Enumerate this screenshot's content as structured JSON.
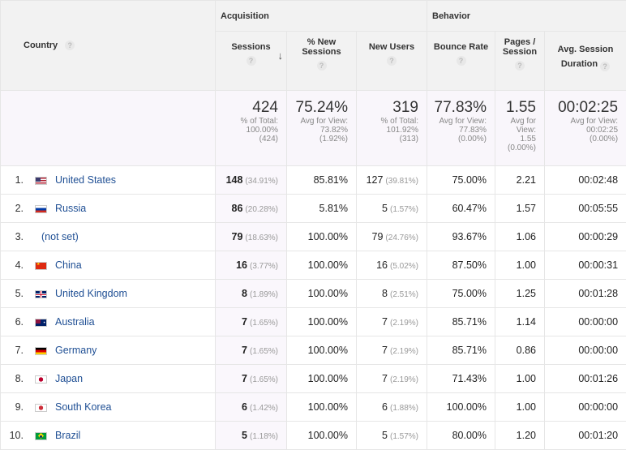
{
  "header": {
    "country": "Country",
    "acquisition": "Acquisition",
    "behavior": "Behavior",
    "cols": {
      "sessions": "Sessions",
      "pct_new_l1": "% New",
      "pct_new_l2": "Sessions",
      "new_users": "New Users",
      "bounce": "Bounce Rate",
      "pages_l1": "Pages /",
      "pages_l2": "Session",
      "dur_l1": "Avg. Session",
      "dur_l2": "Duration"
    },
    "help": "?",
    "sort_arrow": "↓"
  },
  "totals": {
    "sessions": {
      "big": "424",
      "l1": "% of Total:",
      "l2": "100.00%",
      "l3": "(424)"
    },
    "pct_new": {
      "big": "75.24%",
      "l1": "Avg for View:",
      "l2": "73.82%",
      "l3": "(1.92%)"
    },
    "new_users": {
      "big": "319",
      "l1": "% of Total:",
      "l2": "101.92%",
      "l3": "(313)"
    },
    "bounce": {
      "big": "77.83%",
      "l1": "Avg for View:",
      "l2": "77.83%",
      "l3": "(0.00%)"
    },
    "pages": {
      "big": "1.55",
      "l1": "Avg for",
      "l2": "View:",
      "l3": "1.55",
      "l4": "(0.00%)"
    },
    "dur": {
      "big": "00:02:25",
      "l1": "Avg for View:",
      "l2": "00:02:25",
      "l3": "(0.00%)"
    }
  },
  "rows": [
    {
      "idx": "1.",
      "country": "United States",
      "flag": "us-flag-icon",
      "sessions": "148",
      "s_pct": "(34.91%)",
      "pct_new": "85.81%",
      "new_users": "127",
      "nu_pct": "(39.81%)",
      "bounce": "75.00%",
      "pages": "2.21",
      "dur": "00:02:48"
    },
    {
      "idx": "2.",
      "country": "Russia",
      "flag": "ru-flag-icon",
      "sessions": "86",
      "s_pct": "(20.28%)",
      "pct_new": "5.81%",
      "new_users": "5",
      "nu_pct": "(1.57%)",
      "bounce": "60.47%",
      "pages": "1.57",
      "dur": "00:05:55"
    },
    {
      "idx": "3.",
      "country": "(not set)",
      "flag": "",
      "sessions": "79",
      "s_pct": "(18.63%)",
      "pct_new": "100.00%",
      "new_users": "79",
      "nu_pct": "(24.76%)",
      "bounce": "93.67%",
      "pages": "1.06",
      "dur": "00:00:29"
    },
    {
      "idx": "4.",
      "country": "China",
      "flag": "cn-flag-icon",
      "sessions": "16",
      "s_pct": "(3.77%)",
      "pct_new": "100.00%",
      "new_users": "16",
      "nu_pct": "(5.02%)",
      "bounce": "87.50%",
      "pages": "1.00",
      "dur": "00:00:31"
    },
    {
      "idx": "5.",
      "country": "United Kingdom",
      "flag": "gb-flag-icon",
      "sessions": "8",
      "s_pct": "(1.89%)",
      "pct_new": "100.00%",
      "new_users": "8",
      "nu_pct": "(2.51%)",
      "bounce": "75.00%",
      "pages": "1.25",
      "dur": "00:01:28"
    },
    {
      "idx": "6.",
      "country": "Australia",
      "flag": "au-flag-icon",
      "sessions": "7",
      "s_pct": "(1.65%)",
      "pct_new": "100.00%",
      "new_users": "7",
      "nu_pct": "(2.19%)",
      "bounce": "85.71%",
      "pages": "1.14",
      "dur": "00:00:00"
    },
    {
      "idx": "7.",
      "country": "Germany",
      "flag": "de-flag-icon",
      "sessions": "7",
      "s_pct": "(1.65%)",
      "pct_new": "100.00%",
      "new_users": "7",
      "nu_pct": "(2.19%)",
      "bounce": "85.71%",
      "pages": "0.86",
      "dur": "00:00:00"
    },
    {
      "idx": "8.",
      "country": "Japan",
      "flag": "jp-flag-icon",
      "sessions": "7",
      "s_pct": "(1.65%)",
      "pct_new": "100.00%",
      "new_users": "7",
      "nu_pct": "(2.19%)",
      "bounce": "71.43%",
      "pages": "1.00",
      "dur": "00:01:26"
    },
    {
      "idx": "9.",
      "country": "South Korea",
      "flag": "kr-flag-icon",
      "sessions": "6",
      "s_pct": "(1.42%)",
      "pct_new": "100.00%",
      "new_users": "6",
      "nu_pct": "(1.88%)",
      "bounce": "100.00%",
      "pages": "1.00",
      "dur": "00:00:00"
    },
    {
      "idx": "10.",
      "country": "Brazil",
      "flag": "br-flag-icon",
      "sessions": "5",
      "s_pct": "(1.18%)",
      "pct_new": "100.00%",
      "new_users": "5",
      "nu_pct": "(1.57%)",
      "bounce": "80.00%",
      "pages": "1.20",
      "dur": "00:01:20"
    }
  ],
  "colors": {
    "link": "#1f4f94",
    "header_bg": "#f2f2f2",
    "totals_bg": "#f9f6fb"
  }
}
